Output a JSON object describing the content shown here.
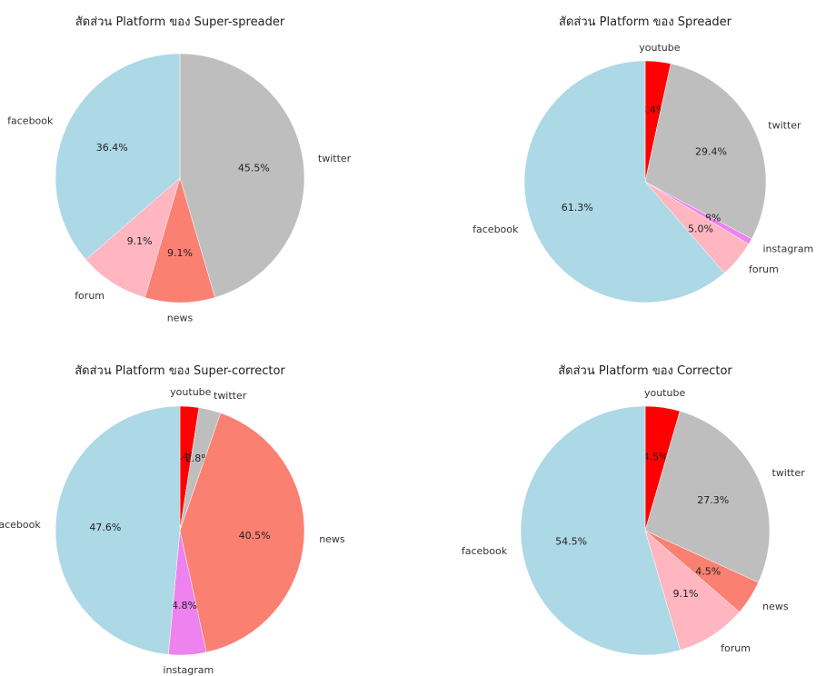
{
  "colors": {
    "youtube": "#ff0000",
    "twitter": "#bebebe",
    "instagram": "#ee82ee",
    "forum": "#ffb6c1",
    "news": "#fa8072",
    "facebook": "#add8e6"
  },
  "chart_data": [
    {
      "type": "pie",
      "title": "สัดส่วน Platform ของ Super-spreader",
      "slices": [
        {
          "label": "twitter",
          "value": 45.5,
          "pct_label": "45.5%"
        },
        {
          "label": "news",
          "value": 9.1,
          "pct_label": "9.1%"
        },
        {
          "label": "forum",
          "value": 9.1,
          "pct_label": "9.1%"
        },
        {
          "label": "facebook",
          "value": 36.4,
          "pct_label": "36.4%"
        }
      ]
    },
    {
      "type": "pie",
      "title": "สัดส่วน Platform ของ Spreader",
      "slices": [
        {
          "label": "youtube",
          "value": 3.4,
          "pct_label": "3.4%"
        },
        {
          "label": "twitter",
          "value": 29.4,
          "pct_label": "29.4%"
        },
        {
          "label": "instagram",
          "value": 0.8,
          "pct_label": "0.8%"
        },
        {
          "label": "forum",
          "value": 5.0,
          "pct_label": "5.0%"
        },
        {
          "label": "facebook",
          "value": 61.3,
          "pct_label": "61.3%"
        }
      ]
    },
    {
      "type": "pie",
      "title": "สัดส่วน Platform ของ Super-corrector",
      "slices": [
        {
          "label": "youtube",
          "value": 2.4,
          "pct_label": "2.4%"
        },
        {
          "label": "twitter",
          "value": 2.8,
          "pct_label": "2.8%"
        },
        {
          "label": "news",
          "value": 40.5,
          "pct_label": "40.5%"
        },
        {
          "label": "instagram",
          "value": 4.8,
          "pct_label": "4.8%"
        },
        {
          "label": "facebook",
          "value": 47.6,
          "pct_label": "47.6%"
        }
      ]
    },
    {
      "type": "pie",
      "title": "สัดส่วน Platform ของ Corrector",
      "slices": [
        {
          "label": "youtube",
          "value": 4.5,
          "pct_label": "4.5%"
        },
        {
          "label": "twitter",
          "value": 27.3,
          "pct_label": "27.3%"
        },
        {
          "label": "news",
          "value": 4.5,
          "pct_label": "4.5%"
        },
        {
          "label": "forum",
          "value": 9.1,
          "pct_label": "9.1%"
        },
        {
          "label": "facebook",
          "value": 54.5,
          "pct_label": "54.5%"
        }
      ]
    }
  ]
}
